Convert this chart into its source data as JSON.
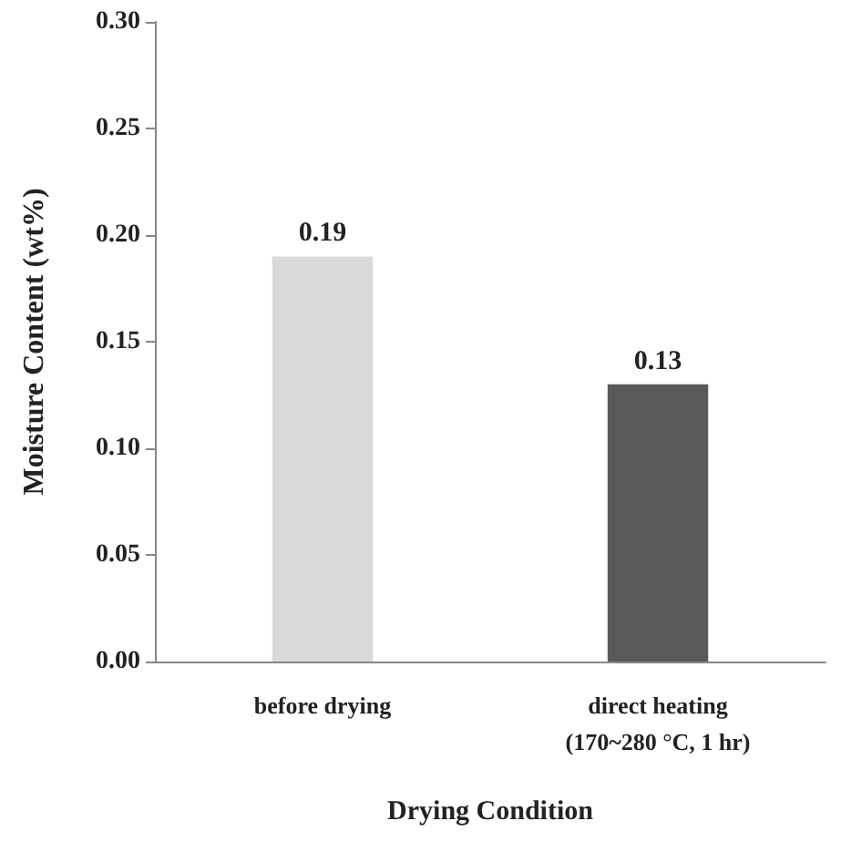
{
  "chart_data": {
    "type": "bar",
    "xlabel": "Drying Condition",
    "ylabel": "Moisture Content (wt%)",
    "categories": [
      "before drying",
      "direct heating\n(170~280 °C, 1 hr)"
    ],
    "values": [
      0.19,
      0.13
    ],
    "colors": [
      "#d9d9d9",
      "#595959"
    ],
    "ylim": [
      0,
      0.3
    ],
    "yticks": [
      {
        "value": 0,
        "label": "0.00"
      },
      0.05,
      {
        "value": 0.1,
        "label": "0.10"
      },
      0.15,
      {
        "value": 0.2,
        "label": "0.20"
      },
      0.25,
      {
        "value": 0.3,
        "label": "0.30"
      }
    ],
    "data_labels": true
  }
}
